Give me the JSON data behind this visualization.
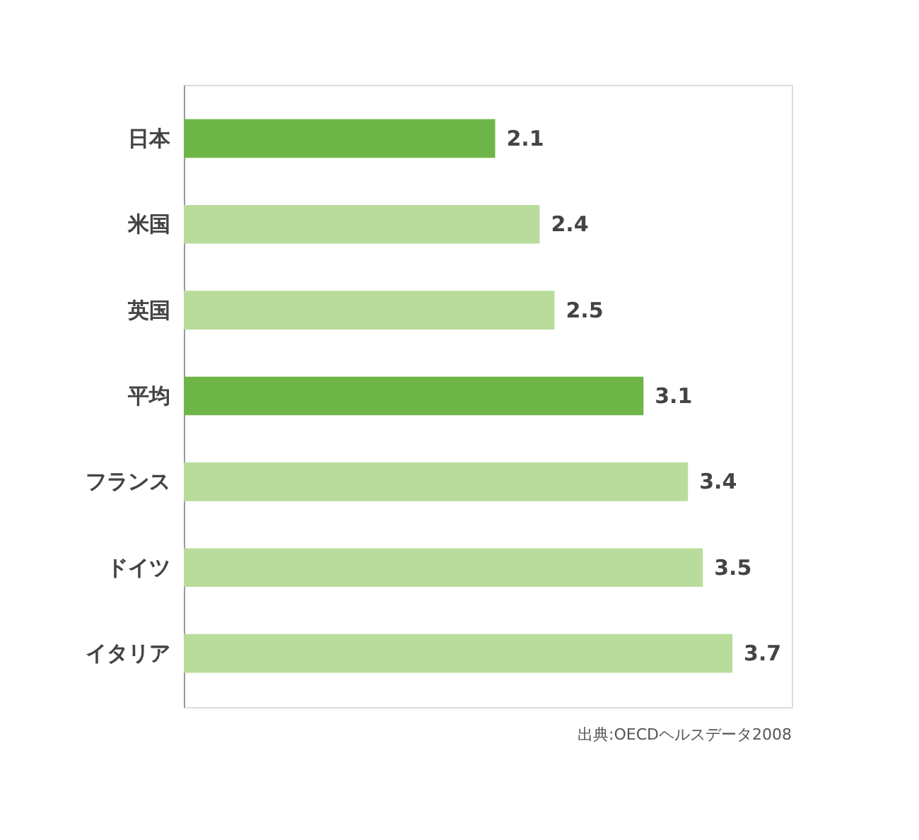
{
  "chart_data": {
    "type": "bar",
    "orientation": "horizontal",
    "categories": [
      "日本",
      "米国",
      "英国",
      "平均",
      "フランス",
      "ドイツ",
      "イタリア"
    ],
    "values": [
      2.1,
      2.4,
      2.5,
      3.1,
      3.4,
      3.5,
      3.7
    ],
    "colors": [
      "#6db547",
      "#b9dc9c",
      "#b9dc9c",
      "#6db547",
      "#b9dc9c",
      "#b9dc9c",
      "#b9dc9c"
    ],
    "xlim": [
      0,
      4.1
    ],
    "tick_labels": "y",
    "data_labels": true,
    "annotations": [
      "出典:OECDヘルスデータ2008"
    ]
  }
}
